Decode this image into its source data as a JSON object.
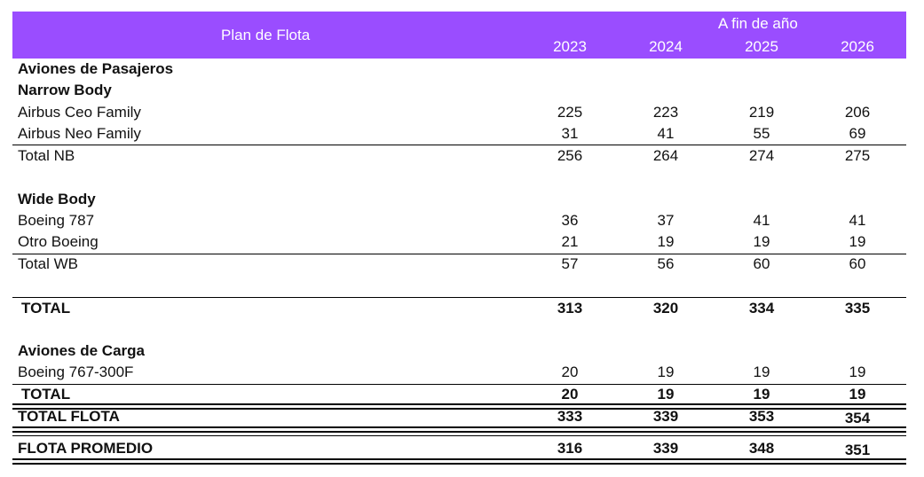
{
  "header": {
    "title": "Plan de Flota",
    "subtitle": "A fin de año",
    "years": [
      "2023",
      "2024",
      "2025",
      "2026"
    ]
  },
  "colors": {
    "header_bg": "#9a4dff",
    "header_text": "#ffffff"
  },
  "sections": {
    "pasajeros": "Aviones de Pasajeros",
    "narrow": "Narrow Body",
    "wide": "Wide Body",
    "carga": "Aviones de Carga"
  },
  "rows": {
    "ceo": {
      "label": "Airbus Ceo Family",
      "values": [
        "225",
        "223",
        "219",
        "206"
      ]
    },
    "neo": {
      "label": "Airbus Neo Family",
      "values": [
        "31",
        "41",
        "55",
        "69"
      ]
    },
    "total_nb": {
      "label": "Total NB",
      "values": [
        "256",
        "264",
        "274",
        "275"
      ]
    },
    "b787": {
      "label": "Boeing 787",
      "values": [
        "36",
        "37",
        "41",
        "41"
      ]
    },
    "otro": {
      "label": "Otro Boeing",
      "values": [
        "21",
        "19",
        "19",
        "19"
      ]
    },
    "total_wb": {
      "label": "Total WB",
      "values": [
        "57",
        "56",
        "60",
        "60"
      ]
    },
    "total_pax": {
      "label": "TOTAL",
      "values": [
        "313",
        "320",
        "334",
        "335"
      ]
    },
    "b767": {
      "label": "Boeing 767-300F",
      "values": [
        "20",
        "19",
        "19",
        "19"
      ]
    },
    "total_cargo": {
      "label": "TOTAL",
      "values": [
        "20",
        "19",
        "19",
        "19"
      ]
    },
    "total_flota": {
      "label": "TOTAL FLOTA",
      "values": [
        "333",
        "339",
        "353",
        "354"
      ]
    },
    "flota_promedio": {
      "label": "FLOTA PROMEDIO",
      "values": [
        "316",
        "339",
        "348",
        "351"
      ]
    }
  }
}
